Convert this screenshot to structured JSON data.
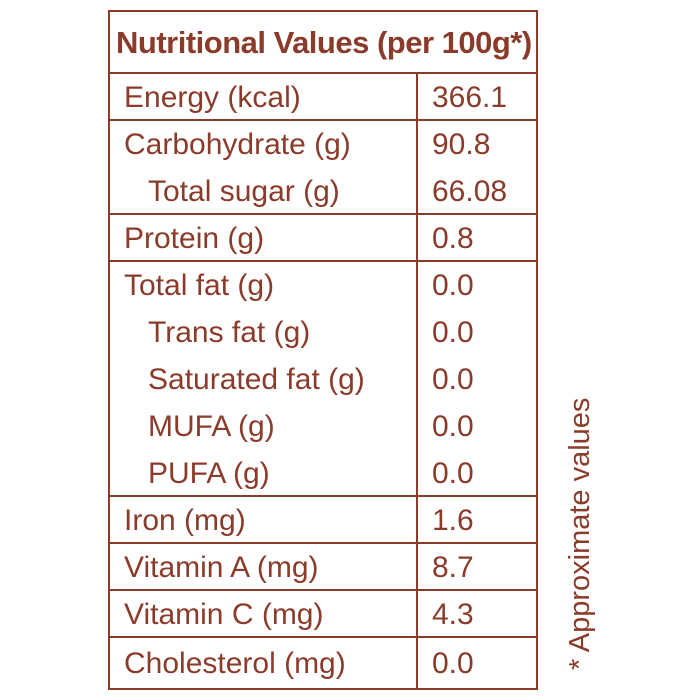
{
  "title": "Nutritional Values (per 100g*)",
  "rows": [
    {
      "label": "Energy (kcal)",
      "value": "366.1"
    },
    {
      "label": "Carbohydrate (g)",
      "value": "90.8"
    },
    {
      "label": "Total sugar (g)",
      "value": "66.08"
    },
    {
      "label": "Protein (g)",
      "value": "0.8"
    },
    {
      "label": "Total fat (g)",
      "value": "0.0"
    },
    {
      "label": "Trans fat (g)",
      "value": "0.0"
    },
    {
      "label": "Saturated fat (g)",
      "value": "0.0"
    },
    {
      "label": "MUFA (g)",
      "value": "0.0"
    },
    {
      "label": "PUFA (g)",
      "value": "0.0"
    },
    {
      "label": "Iron (mg)",
      "value": "1.6"
    },
    {
      "label": "Vitamin A (mg)",
      "value": "8.7"
    },
    {
      "label": "Vitamin C (mg)",
      "value": "4.3"
    },
    {
      "label": "Cholesterol (mg)",
      "value": "0.0"
    }
  ],
  "footnote": "* Approximate values",
  "colors": {
    "text": "#8a3b2a",
    "border": "#8a3b2a",
    "background": "#ffffff"
  }
}
